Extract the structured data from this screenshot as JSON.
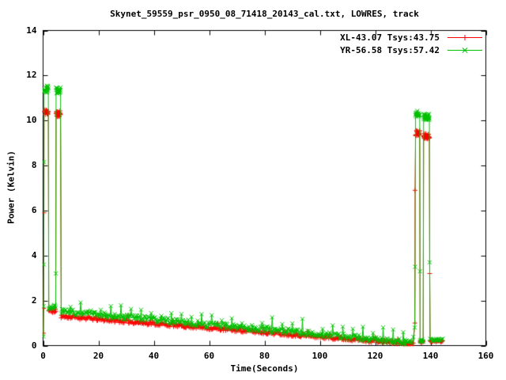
{
  "chart_data": {
    "type": "line",
    "title": "Skynet_59559_psr_0950_08_71418_20143_cal.txt, LOWRES, track",
    "xlabel": "Time(Seconds)",
    "ylabel": "Power (Kelvin)",
    "xlim": [
      0,
      160
    ],
    "ylim": [
      0,
      14
    ],
    "xticks": [
      0,
      20,
      40,
      60,
      80,
      100,
      120,
      140,
      160
    ],
    "yticks": [
      0,
      2,
      4,
      6,
      8,
      10,
      12,
      14
    ],
    "grid": false,
    "legend_position": "top-right-inside",
    "background_color": "#ffffff",
    "border_color": "#000000",
    "description": "Calibration on/off power vs time; cal ON ~t=0-6s and ~t=134.5-139.6s, declining baseline between, short baseline tail to t=144.5",
    "series": [
      {
        "name": "XL-43.07 Tsys:43.75",
        "color": "#ff0000",
        "marker": "plus",
        "seed": 11,
        "cal_on_level": 10.35,
        "cal_on_level_end": 9.35,
        "baseline_start": 1.3,
        "baseline_end": 0.07,
        "segments": [
          {
            "t0": 0.35,
            "t1": 1.9,
            "level": 10.38,
            "noise": 0.13,
            "step": 0.07
          },
          {
            "t0": 2.05,
            "t1": 4.55,
            "level": 1.55,
            "noise": 0.1,
            "step": 0.18
          },
          {
            "t0": 4.7,
            "t1": 6.3,
            "level": 10.3,
            "noise": 0.13,
            "step": 0.07
          },
          {
            "t0": 6.55,
            "t1": 133.8,
            "level_start": 1.3,
            "level_end": 0.07,
            "noise": 0.08,
            "step": 0.28,
            "spike_every": 29,
            "spike_amp": 0.18
          },
          {
            "t0": 134.6,
            "t1": 136.1,
            "level": 9.45,
            "noise": 0.12,
            "step": 0.07
          },
          {
            "t0": 136.25,
            "t1": 137.35,
            "level": 0.18,
            "noise": 0.05,
            "step": 0.14
          },
          {
            "t0": 137.5,
            "t1": 139.6,
            "level": 9.3,
            "noise": 0.12,
            "step": 0.07
          },
          {
            "t0": 139.85,
            "t1": 144.4,
            "level": 0.2,
            "noise": 0.05,
            "step": 0.22
          }
        ],
        "extra_points": [
          [
            0.12,
            0.55
          ],
          [
            0.2,
            1.65
          ],
          [
            0.3,
            5.9
          ],
          [
            134.35,
            1.0
          ],
          [
            134.42,
            6.9
          ],
          [
            139.72,
            3.2
          ]
        ]
      },
      {
        "name": "YR-56.58 Tsys:57.42",
        "color": "#00c000",
        "marker": "cross",
        "seed": 29,
        "cal_on_level": 11.38,
        "cal_on_level_end": 10.2,
        "baseline_start": 1.52,
        "baseline_end": 0.13,
        "segments": [
          {
            "t0": 0.35,
            "t1": 1.9,
            "level": 11.4,
            "noise": 0.16,
            "step": 0.07
          },
          {
            "t0": 2.05,
            "t1": 4.55,
            "level": 1.72,
            "noise": 0.12,
            "step": 0.18
          },
          {
            "t0": 4.7,
            "t1": 6.3,
            "level": 11.35,
            "noise": 0.16,
            "step": 0.07
          },
          {
            "t0": 6.55,
            "t1": 133.8,
            "level_start": 1.52,
            "level_end": 0.13,
            "noise": 0.13,
            "step": 0.28,
            "spike_every": 13,
            "spike_amp": 0.45
          },
          {
            "t0": 134.6,
            "t1": 136.1,
            "level": 10.3,
            "noise": 0.15,
            "step": 0.07
          },
          {
            "t0": 136.25,
            "t1": 137.35,
            "level": 0.22,
            "noise": 0.05,
            "step": 0.14
          },
          {
            "t0": 137.5,
            "t1": 139.6,
            "level": 10.15,
            "noise": 0.15,
            "step": 0.07
          },
          {
            "t0": 139.85,
            "t1": 144.4,
            "level": 0.25,
            "noise": 0.05,
            "step": 0.22
          }
        ],
        "extra_points": [
          [
            0.12,
            0.4
          ],
          [
            0.18,
            1.75
          ],
          [
            0.27,
            3.6
          ],
          [
            0.33,
            8.15
          ],
          [
            4.62,
            3.2
          ],
          [
            134.3,
            0.8
          ],
          [
            134.45,
            3.5
          ],
          [
            136.2,
            3.3
          ],
          [
            139.7,
            3.7
          ]
        ]
      }
    ]
  }
}
